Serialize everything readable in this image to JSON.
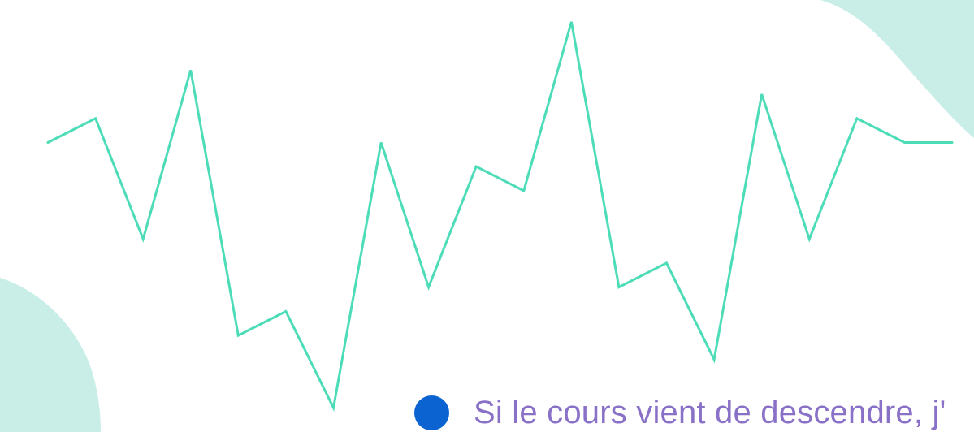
{
  "colors": {
    "line": "#4ddcb8",
    "decor_blob": "#c8eee7",
    "caption_dot": "#0b63d1",
    "caption_text": "#8a71c8",
    "background": "#ffffff"
  },
  "caption": {
    "bullet_icon": "filled-circle",
    "text": "Si le cours vient de descendre, j'"
  },
  "chart_data": {
    "type": "line",
    "title": "",
    "xlabel": "",
    "ylabel": "",
    "axes_visible": false,
    "grid": false,
    "legend": "none",
    "ylim": [
      0,
      100
    ],
    "x": [
      1,
      2,
      3,
      4,
      5,
      6,
      7,
      8,
      9,
      10,
      11,
      12,
      13,
      14,
      15,
      16,
      17,
      18,
      19,
      20
    ],
    "series": [
      {
        "values": [
          69,
          75,
          45,
          87,
          21,
          27,
          3,
          69,
          33,
          63,
          57,
          99,
          33,
          39,
          15,
          81,
          45,
          75,
          69,
          69
        ]
      }
    ]
  }
}
